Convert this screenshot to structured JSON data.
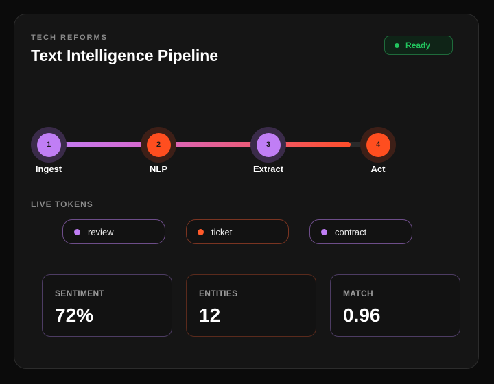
{
  "header": {
    "eyebrow": "TECH REFORMS",
    "title": "Text Intelligence Pipeline",
    "status": {
      "label": "Ready",
      "color": "#22c55e"
    }
  },
  "pipeline": {
    "progress": 0.88,
    "colors": {
      "purple": "#c07ef5",
      "orange": "#ff4e1f"
    },
    "steps": [
      {
        "number": "1",
        "label": "Ingest",
        "color": "purple"
      },
      {
        "number": "2",
        "label": "NLP",
        "color": "orange"
      },
      {
        "number": "3",
        "label": "Extract",
        "color": "purple"
      },
      {
        "number": "4",
        "label": "Act",
        "color": "orange"
      }
    ]
  },
  "tokens": {
    "label": "LIVE TOKENS",
    "items": [
      {
        "text": "review",
        "color": "purple"
      },
      {
        "text": "ticket",
        "color": "orange"
      },
      {
        "text": "contract",
        "color": "purple"
      }
    ]
  },
  "metrics": [
    {
      "label": "SENTIMENT",
      "value": "72%",
      "color": "purple"
    },
    {
      "label": "ENTITIES",
      "value": "12",
      "color": "orange"
    },
    {
      "label": "MATCH",
      "value": "0.96",
      "color": "purple"
    }
  ]
}
